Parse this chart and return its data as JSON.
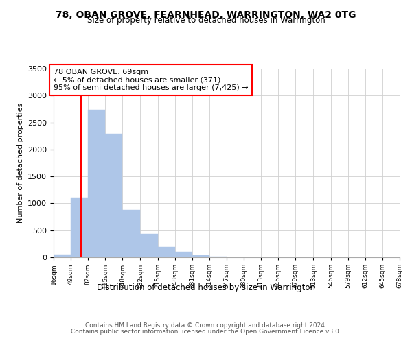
{
  "title": "78, OBAN GROVE, FEARNHEAD, WARRINGTON, WA2 0TG",
  "subtitle": "Size of property relative to detached houses in Warrington",
  "xlabel": "Distribution of detached houses by size in Warrington",
  "ylabel": "Number of detached properties",
  "bar_edges": [
    16,
    49,
    82,
    115,
    148,
    182,
    215,
    248,
    281,
    314,
    347,
    380,
    413,
    446,
    479,
    513,
    546,
    579,
    612,
    645,
    678
  ],
  "bar_heights": [
    50,
    1110,
    2740,
    2290,
    875,
    430,
    185,
    100,
    40,
    10,
    5,
    5,
    2,
    1,
    0,
    0,
    0,
    0,
    0,
    0
  ],
  "bar_color": "#aec6e8",
  "property_line_x": 69,
  "property_line_color": "red",
  "annotation_text": "78 OBAN GROVE: 69sqm\n← 5% of detached houses are smaller (371)\n95% of semi-detached houses are larger (7,425) →",
  "ylim": [
    0,
    3500
  ],
  "yticks": [
    0,
    500,
    1000,
    1500,
    2000,
    2500,
    3000,
    3500
  ],
  "tick_labels": [
    "16sqm",
    "49sqm",
    "82sqm",
    "115sqm",
    "148sqm",
    "182sqm",
    "215sqm",
    "248sqm",
    "281sqm",
    "314sqm",
    "347sqm",
    "380sqm",
    "413sqm",
    "446sqm",
    "479sqm",
    "513sqm",
    "546sqm",
    "579sqm",
    "612sqm",
    "645sqm",
    "678sqm"
  ],
  "footer_line1": "Contains HM Land Registry data © Crown copyright and database right 2024.",
  "footer_line2": "Contains public sector information licensed under the Open Government Licence v3.0.",
  "grid_color": "#d0d0d0"
}
